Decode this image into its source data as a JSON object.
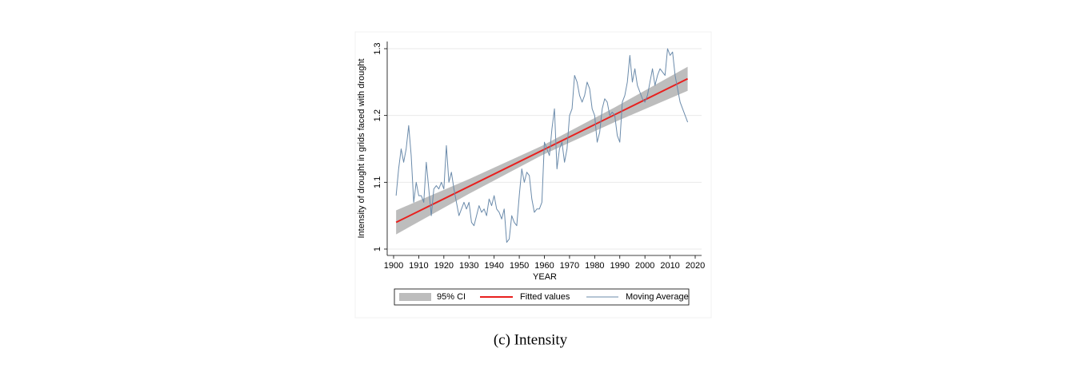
{
  "chart_data": {
    "type": "line",
    "caption": "(c) Intensity",
    "xlabel": "YEAR",
    "ylabel": "Intensity of drought in grids faced with drought",
    "xlim": [
      1900,
      2020
    ],
    "xticks": [
      1900,
      1910,
      1920,
      1930,
      1940,
      1950,
      1960,
      1970,
      1980,
      1990,
      2000,
      2010,
      2020
    ],
    "ylim": [
      1,
      1.3
    ],
    "yticks": [
      1,
      1.1,
      1.2,
      1.3
    ],
    "grid": true,
    "legend": "bottom",
    "band": {
      "name": "95% CI",
      "color": "#bdbdbd",
      "x": [
        1901,
        1930,
        1959,
        1988,
        2017
      ],
      "lower": [
        1.022,
        1.0827,
        1.1405,
        1.1902,
        1.237
      ],
      "upper": [
        1.058,
        1.1047,
        1.1545,
        1.2122,
        1.273
      ]
    },
    "series": [
      {
        "name": "Fitted values",
        "color": "#e8201e",
        "x": [
          1901,
          2017
        ],
        "values": [
          1.04,
          1.255
        ]
      },
      {
        "name": "Moving Average",
        "color": "#6b8bab",
        "x": [
          1901,
          1902,
          1903,
          1904,
          1905,
          1906,
          1907,
          1908,
          1909,
          1910,
          1911,
          1912,
          1913,
          1914,
          1915,
          1916,
          1917,
          1918,
          1919,
          1920,
          1921,
          1922,
          1923,
          1924,
          1925,
          1926,
          1927,
          1928,
          1929,
          1930,
          1931,
          1932,
          1933,
          1934,
          1935,
          1936,
          1937,
          1938,
          1939,
          1940,
          1941,
          1942,
          1943,
          1944,
          1945,
          1946,
          1947,
          1948,
          1949,
          1950,
          1951,
          1952,
          1953,
          1954,
          1955,
          1956,
          1957,
          1958,
          1959,
          1960,
          1961,
          1962,
          1963,
          1964,
          1965,
          1966,
          1967,
          1968,
          1969,
          1970,
          1971,
          1972,
          1973,
          1974,
          1975,
          1976,
          1977,
          1978,
          1979,
          1980,
          1981,
          1982,
          1983,
          1984,
          1985,
          1986,
          1987,
          1988,
          1989,
          1990,
          1991,
          1992,
          1993,
          1994,
          1995,
          1996,
          1997,
          1998,
          1999,
          2000,
          2001,
          2002,
          2003,
          2004,
          2005,
          2006,
          2007,
          2008,
          2009,
          2010,
          2011,
          2012,
          2013,
          2014,
          2015,
          2016,
          2017
        ],
        "values": [
          1.08,
          1.12,
          1.15,
          1.13,
          1.15,
          1.185,
          1.14,
          1.07,
          1.1,
          1.08,
          1.08,
          1.07,
          1.13,
          1.09,
          1.05,
          1.09,
          1.095,
          1.09,
          1.1,
          1.09,
          1.155,
          1.1,
          1.115,
          1.09,
          1.07,
          1.05,
          1.06,
          1.07,
          1.06,
          1.07,
          1.04,
          1.035,
          1.05,
          1.065,
          1.055,
          1.06,
          1.05,
          1.075,
          1.065,
          1.08,
          1.06,
          1.055,
          1.045,
          1.06,
          1.01,
          1.015,
          1.05,
          1.04,
          1.035,
          1.08,
          1.12,
          1.1,
          1.115,
          1.11,
          1.075,
          1.055,
          1.06,
          1.06,
          1.07,
          1.16,
          1.15,
          1.14,
          1.18,
          1.21,
          1.12,
          1.15,
          1.16,
          1.13,
          1.15,
          1.2,
          1.21,
          1.26,
          1.25,
          1.23,
          1.22,
          1.23,
          1.25,
          1.24,
          1.21,
          1.2,
          1.16,
          1.175,
          1.21,
          1.225,
          1.22,
          1.2,
          1.205,
          1.2,
          1.17,
          1.16,
          1.22,
          1.23,
          1.25,
          1.29,
          1.25,
          1.27,
          1.245,
          1.235,
          1.225,
          1.22,
          1.23,
          1.25,
          1.27,
          1.245,
          1.26,
          1.27,
          1.265,
          1.26,
          1.3,
          1.29,
          1.295,
          1.26,
          1.24,
          1.22,
          1.21,
          1.2,
          1.19
        ]
      }
    ]
  }
}
